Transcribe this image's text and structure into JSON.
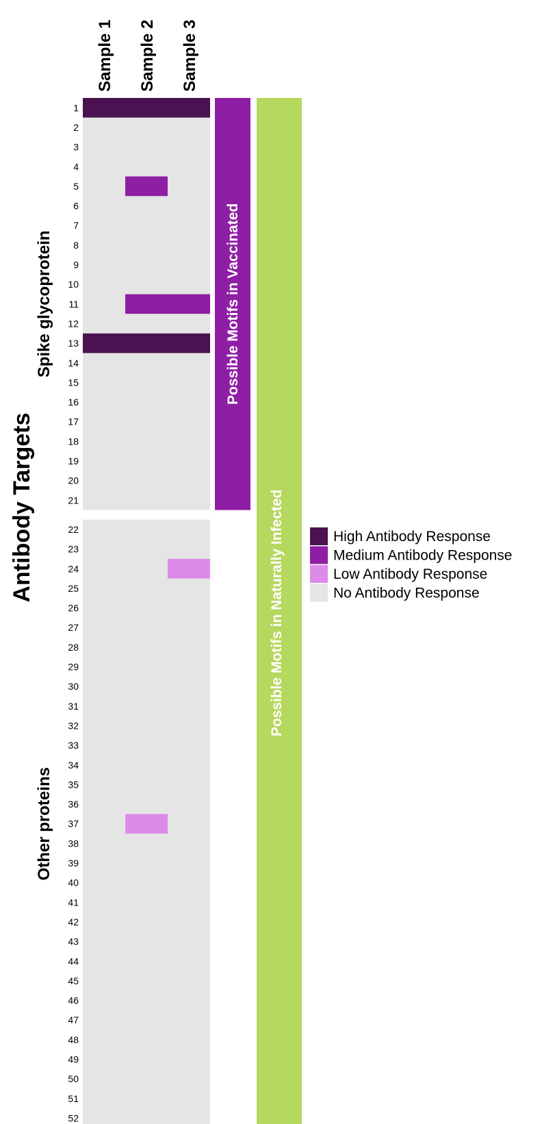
{
  "chart_data": {
    "type": "heatmap",
    "title": "Antibody Targets",
    "columns": [
      "Sample 1",
      "Sample 2",
      "Sample 3"
    ],
    "rows": [
      1,
      2,
      3,
      4,
      5,
      6,
      7,
      8,
      9,
      10,
      11,
      12,
      13,
      14,
      15,
      16,
      17,
      18,
      19,
      20,
      21,
      22,
      23,
      24,
      25,
      26,
      27,
      28,
      29,
      30,
      31,
      32,
      33,
      34,
      35,
      36,
      37,
      38,
      39,
      40,
      41,
      42,
      43,
      44,
      45,
      46,
      47,
      48,
      49,
      50,
      51,
      52
    ],
    "groups": [
      {
        "label": "Spike glycoprotein",
        "rows": [
          1,
          21
        ]
      },
      {
        "label": "Other proteins",
        "rows": [
          22,
          52
        ]
      }
    ],
    "levels": [
      {
        "name": "High Antibody Response",
        "color": "#4a1250"
      },
      {
        "name": "Medium Antibody Response",
        "color": "#8e1ea4"
      },
      {
        "name": "Low Antibody Response",
        "color": "#dc8ce8"
      },
      {
        "name": "No Antibody Response",
        "color": "#e5e5e5"
      }
    ],
    "cells": [
      {
        "row": 1,
        "col": 1,
        "level": 0
      },
      {
        "row": 1,
        "col": 2,
        "level": 0
      },
      {
        "row": 1,
        "col": 3,
        "level": 0
      },
      {
        "row": 5,
        "col": 2,
        "level": 1
      },
      {
        "row": 11,
        "col": 2,
        "level": 1
      },
      {
        "row": 11,
        "col": 3,
        "level": 1
      },
      {
        "row": 13,
        "col": 1,
        "level": 0
      },
      {
        "row": 13,
        "col": 2,
        "level": 0
      },
      {
        "row": 13,
        "col": 3,
        "level": 0
      },
      {
        "row": 24,
        "col": 3,
        "level": 2
      },
      {
        "row": 37,
        "col": 2,
        "level": 2
      }
    ],
    "default_level": 3,
    "annotations": [
      {
        "label": "Possible Motifs in Vaccinated",
        "rows": [
          1,
          21
        ],
        "color": "#8e1ea4"
      },
      {
        "label": "Possible Motifs in Naturally Infected",
        "rows": [
          1,
          52
        ],
        "color": "#b5d85e"
      }
    ],
    "legend_position": "right"
  }
}
